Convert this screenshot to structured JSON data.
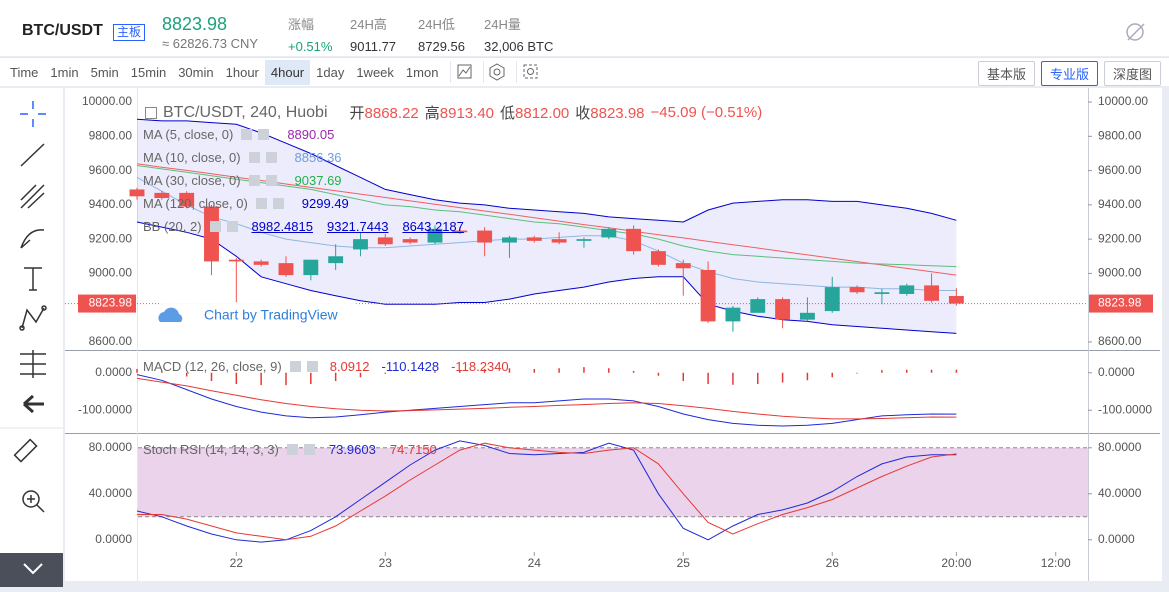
{
  "header": {
    "pair": "BTC/USDT",
    "board": "主板",
    "price": "8823.98",
    "price_cny": "≈ 62826.73 CNY",
    "stats": [
      {
        "label": "涨幅",
        "value": "+0.51%",
        "color": "#1ba27a"
      },
      {
        "label": "24H高",
        "value": "9011.77",
        "color": "#333333"
      },
      {
        "label": "24H低",
        "value": "8729.56",
        "color": "#333333"
      },
      {
        "label": "24H量",
        "value": "32,006 BTC",
        "color": "#333333"
      }
    ]
  },
  "toolbar": {
    "intervals": [
      "Time",
      "1min",
      "5min",
      "15min",
      "30min",
      "1hour",
      "4hour",
      "1day",
      "1week",
      "1mon"
    ],
    "active": 6,
    "views": [
      "基本版",
      "专业版",
      "深度图"
    ],
    "active_view": 1
  },
  "chart": {
    "type": "candlestick",
    "legend": {
      "title": "BTC/USDT, 240, Huobi",
      "ohlc": [
        {
          "label": "开",
          "value": "8868.22"
        },
        {
          "label": "高",
          "value": "8913.40"
        },
        {
          "label": "低",
          "value": "8812.00"
        },
        {
          "label": "收",
          "value": "8823.98"
        }
      ],
      "change": "−45.09 (−0.51%)"
    },
    "indicators": [
      {
        "label": "MA (5, close, 0)",
        "value": "8890.05",
        "color": "#9c27b0"
      },
      {
        "label": "MA (10, close, 0)",
        "value": "8856.36",
        "color": "#6f9fd8"
      },
      {
        "label": "MA (30, close, 0)",
        "value": "9037.69",
        "color": "#21b34a"
      },
      {
        "label": "MA (120, close, 0)",
        "value": "9299.49",
        "color": "#0000cc"
      }
    ],
    "bb": {
      "label": "BB (20, 2)",
      "values": [
        "8982.4815",
        "9321.7443",
        "8643.2187"
      ],
      "color": "#0000cc"
    },
    "watermark": "Chart by TradingView",
    "xlim": [
      -2.9,
      38.3
    ],
    "xticks": [
      {
        "value": 4,
        "label": "22"
      },
      {
        "value": 10,
        "label": "23"
      },
      {
        "value": 16,
        "label": "24"
      },
      {
        "value": 22,
        "label": "25"
      },
      {
        "value": 28,
        "label": "26"
      },
      {
        "value": 33,
        "label": "20:00"
      },
      {
        "value": 37,
        "label": "12:00"
      }
    ],
    "ylim": [
      8553,
      10082
    ],
    "yticks": [
      {
        "value": 10000,
        "label": "10000.00"
      },
      {
        "value": 9800,
        "label": "9800.00"
      },
      {
        "value": 9600,
        "label": "9600.00"
      },
      {
        "value": 9400,
        "label": "9400.00"
      },
      {
        "value": 9200,
        "label": "9200.00"
      },
      {
        "value": 9000,
        "label": "9000.00"
      },
      {
        "value": 8600,
        "label": "8600.00"
      }
    ],
    "up_color": "#26a69a",
    "down_color": "#ef5350",
    "candles": {
      "open": [
        9490,
        9470,
        9470,
        9390,
        9080,
        9070,
        9060,
        8990,
        9060,
        9140,
        9210,
        9200,
        9180,
        9250,
        9250,
        9180,
        9210,
        9200,
        9190,
        9210,
        9260,
        9130,
        9060,
        9020,
        8720,
        8770,
        8850,
        8730,
        8780,
        8920,
        8880,
        8880,
        8930,
        8868.22
      ],
      "high": [
        9500,
        9480,
        9480,
        9400,
        9090,
        9080,
        9100,
        9080,
        9170,
        9240,
        9230,
        9210,
        9280,
        9270,
        9270,
        9220,
        9220,
        9240,
        9210,
        9270,
        9280,
        9140,
        9080,
        9070,
        8810,
        8860,
        8860,
        8860,
        8980,
        8930,
        8910,
        8940,
        9000,
        8913.4
      ],
      "low": [
        9430,
        9430,
        9380,
        8990,
        8820,
        9040,
        8980,
        8960,
        9020,
        9100,
        9160,
        9170,
        9170,
        9230,
        9100,
        9090,
        9180,
        9170,
        9150,
        9200,
        9110,
        9040,
        8870,
        8710,
        8660,
        8810,
        8680,
        8720,
        8770,
        8880,
        8820,
        8870,
        8830,
        8812.0
      ],
      "close": [
        9450,
        9440,
        9390,
        9070,
        9070,
        9050,
        8990,
        9080,
        9100,
        9200,
        9170,
        9180,
        9260,
        9240,
        9180,
        9210,
        9190,
        9180,
        9200,
        9260,
        9130,
        9050,
        9030,
        8720,
        8800,
        8850,
        8730,
        8770,
        8920,
        8890,
        8890,
        8930,
        8840,
        8823.98
      ]
    },
    "lines": [
      {
        "color": "#f06060",
        "values": [
          9640,
          9620,
          9601,
          9581,
          9561,
          9542,
          9522,
          9502,
          9482,
          9463,
          9443,
          9423,
          9404,
          9384,
          9364,
          9345,
          9325,
          9305,
          9285,
          9266,
          9246,
          9226,
          9207,
          9187,
          9167,
          9148,
          9128,
          9108,
          9088,
          9069,
          9049,
          9029,
          9010,
          8990
        ]
      },
      {
        "color": "#5cbf7a",
        "values": [
          9630,
          9610,
          9590,
          9570,
          9550,
          9530,
          9510,
          9490,
          9460,
          9430,
          9400,
          9390,
          9370,
          9360,
          9340,
          9320,
          9300,
          9290,
          9270,
          9250,
          9230,
          9200,
          9160,
          9130,
          9110,
          9100,
          9090,
          9080,
          9070,
          9060,
          9055,
          9050,
          9045,
          9040
        ]
      },
      {
        "color": "#8fb7e0",
        "values": [
          9560,
          9480,
          9400,
          9330,
          9290,
          9240,
          9200,
          9180,
          9160,
          9150,
          9150,
          9160,
          9170,
          9180,
          9190,
          9200,
          9200,
          9210,
          9220,
          9220,
          9190,
          9130,
          9060,
          9010,
          8970,
          8950,
          8940,
          8930,
          8920,
          8920,
          8910,
          8910,
          8900,
          8900
        ]
      }
    ],
    "bb_upper": [
      9900,
      9890,
      9890,
      9880,
      9870,
      9820,
      9760,
      9700,
      9630,
      9560,
      9490,
      9460,
      9430,
      9410,
      9400,
      9380,
      9370,
      9360,
      9350,
      9330,
      9320,
      9310,
      9300,
      9370,
      9410,
      9420,
      9430,
      9430,
      9420,
      9420,
      9400,
      9380,
      9350,
      9310
    ],
    "bb_lower": [
      9300,
      9270,
      9240,
      9200,
      9100,
      8980,
      8940,
      8900,
      8870,
      8840,
      8820,
      8820,
      8820,
      8830,
      8830,
      8850,
      8880,
      8900,
      8920,
      8950,
      8970,
      8980,
      8980,
      8820,
      8780,
      8750,
      8730,
      8720,
      8700,
      8690,
      8680,
      8670,
      8660,
      8650
    ],
    "macd": {
      "label": "MACD (12, 26, close, 9)",
      "legend_values": [
        {
          "value": "8.0912",
          "color": "#e53935"
        },
        {
          "value": "-110.1428",
          "color": "#1e2bd6"
        },
        {
          "value": "-118.2340",
          "color": "#e53935"
        }
      ],
      "ylim": [
        -158,
        58
      ],
      "yticks": [
        {
          "value": 0,
          "label": "0.0000"
        },
        {
          "value": -100,
          "label": "-100.0000"
        }
      ],
      "histogram": [
        10,
        5,
        -10,
        -22,
        -30,
        -33,
        -33,
        -30,
        -22,
        -12,
        -3,
        1,
        4,
        7,
        10,
        12,
        10,
        12,
        15,
        12,
        5,
        -8,
        -22,
        -30,
        -32,
        -30,
        -26,
        -20,
        -12,
        -2,
        7,
        8,
        8,
        8.0912
      ],
      "macd": [
        -5,
        -20,
        -45,
        -70,
        -90,
        -105,
        -115,
        -120,
        -118,
        -112,
        -105,
        -100,
        -95,
        -90,
        -85,
        -80,
        -80,
        -75,
        -70,
        -70,
        -75,
        -90,
        -110,
        -125,
        -135,
        -140,
        -142,
        -140,
        -135,
        -125,
        -115,
        -112,
        -110,
        -110.1428
      ],
      "signal": [
        -15,
        -25,
        -35,
        -48,
        -60,
        -72,
        -82,
        -90,
        -96,
        -100,
        -102,
        -101,
        -99,
        -97,
        -95,
        -92,
        -90,
        -87,
        -85,
        -82,
        -80,
        -82,
        -88,
        -95,
        -103,
        -110,
        -116,
        -120,
        -123,
        -123,
        -122,
        -120,
        -118,
        -118.234
      ],
      "histogram_color": "#e53935",
      "macd_color": "#1e2bd6",
      "signal_color": "#e53935"
    },
    "stoch": {
      "label": "Stoch RSI (14, 14, 3, 3)",
      "legend_values": [
        {
          "value": "73.9603",
          "color": "#1e2bd6"
        },
        {
          "value": "74.7150",
          "color": "#e53935"
        }
      ],
      "ylim": [
        -35,
        92
      ],
      "yticks": [
        {
          "value": 80,
          "label": "80.0000"
        },
        {
          "value": 40,
          "label": "40.0000"
        },
        {
          "value": 0,
          "label": "0.0000"
        }
      ],
      "band": [
        20,
        80
      ],
      "k": [
        25,
        20,
        12,
        5,
        0,
        -2,
        0,
        8,
        20,
        35,
        50,
        65,
        78,
        86,
        82,
        75,
        74,
        75,
        76,
        84,
        78,
        40,
        10,
        0,
        12,
        22,
        26,
        32,
        42,
        55,
        66,
        72,
        74,
        73.9603
      ],
      "d": [
        22,
        22,
        18,
        12,
        6,
        3,
        0,
        3,
        12,
        25,
        38,
        52,
        65,
        78,
        84,
        80,
        78,
        76,
        75,
        78,
        80,
        66,
        40,
        15,
        5,
        14,
        22,
        28,
        35,
        45,
        55,
        64,
        72,
        74.715
      ],
      "k_color": "#1e2bd6",
      "d_color": "#e53935"
    }
  }
}
